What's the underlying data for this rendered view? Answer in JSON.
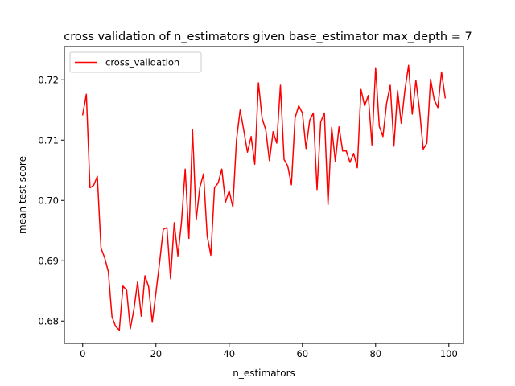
{
  "chart_data": {
    "type": "line",
    "title": "cross validation of n_estimators given base_estimator max_depth = 7",
    "xlabel": "n_estimators",
    "ylabel": "mean test score",
    "xlim": [
      -5,
      104
    ],
    "ylim": [
      0.6763,
      0.7255
    ],
    "x_ticks": [
      0,
      20,
      40,
      60,
      80,
      100
    ],
    "x_tick_labels": [
      "0",
      "20",
      "40",
      "60",
      "80",
      "100"
    ],
    "y_ticks": [
      0.68,
      0.69,
      0.7,
      0.71,
      0.72
    ],
    "y_tick_labels": [
      "0.68",
      "0.69",
      "0.70",
      "0.71",
      "0.72"
    ],
    "grid": false,
    "legend_position": "top-left",
    "series": [
      {
        "name": "cross_validation",
        "color": "#ff0000",
        "x": [
          0,
          1,
          2,
          3,
          4,
          5,
          6,
          7,
          8,
          9,
          10,
          11,
          12,
          13,
          14,
          15,
          16,
          17,
          18,
          19,
          20,
          21,
          22,
          23,
          24,
          25,
          26,
          27,
          28,
          29,
          30,
          31,
          32,
          33,
          34,
          35,
          36,
          37,
          38,
          39,
          40,
          41,
          42,
          43,
          44,
          45,
          46,
          47,
          48,
          49,
          50,
          51,
          52,
          53,
          54,
          55,
          56,
          57,
          58,
          59,
          60,
          61,
          62,
          63,
          64,
          65,
          66,
          67,
          68,
          69,
          70,
          71,
          72,
          73,
          74,
          75,
          76,
          77,
          78,
          79,
          80,
          81,
          82,
          83,
          84,
          85,
          86,
          87,
          88,
          89,
          90,
          91,
          92,
          93,
          94,
          95,
          96,
          97,
          98,
          99
        ],
        "y": [
          0.7142,
          0.7176,
          0.7021,
          0.7025,
          0.704,
          0.6921,
          0.6905,
          0.6882,
          0.6807,
          0.6791,
          0.6785,
          0.6858,
          0.6851,
          0.6787,
          0.682,
          0.6865,
          0.6808,
          0.6875,
          0.6857,
          0.6798,
          0.6847,
          0.6897,
          0.6952,
          0.6955,
          0.687,
          0.6963,
          0.6908,
          0.6965,
          0.7052,
          0.6937,
          0.7117,
          0.6968,
          0.7022,
          0.7044,
          0.6941,
          0.6909,
          0.7021,
          0.7029,
          0.7052,
          0.6997,
          0.7016,
          0.6989,
          0.71,
          0.715,
          0.7116,
          0.708,
          0.7106,
          0.706,
          0.7195,
          0.7136,
          0.7117,
          0.7066,
          0.7114,
          0.7095,
          0.7191,
          0.7068,
          0.7057,
          0.7026,
          0.7137,
          0.7157,
          0.7145,
          0.7086,
          0.7133,
          0.7145,
          0.7018,
          0.713,
          0.7145,
          0.6993,
          0.7121,
          0.7065,
          0.7122,
          0.7082,
          0.7082,
          0.7063,
          0.7078,
          0.7054,
          0.7184,
          0.7157,
          0.7174,
          0.7092,
          0.722,
          0.7123,
          0.7106,
          0.7161,
          0.7191,
          0.709,
          0.7182,
          0.7128,
          0.7183,
          0.7224,
          0.7143,
          0.7199,
          0.715,
          0.7085,
          0.7095,
          0.7201,
          0.7167,
          0.7154,
          0.7213,
          0.717
        ]
      }
    ]
  }
}
